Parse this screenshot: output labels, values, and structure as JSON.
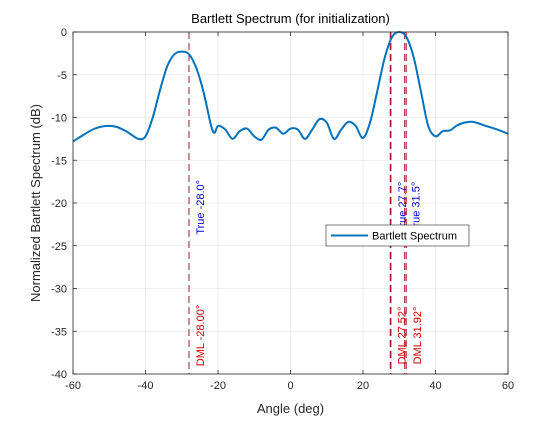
{
  "chart_data": {
    "type": "line",
    "title": "Bartlett Spectrum (for initialization)",
    "xlabel": "Angle (deg)",
    "ylabel": "Normalized Bartlett Spectrum (dB)",
    "xlim": [
      -60,
      60
    ],
    "ylim": [
      -40,
      0
    ],
    "xticks": [
      -60,
      -40,
      -20,
      0,
      20,
      40,
      60
    ],
    "yticks": [
      0,
      -5,
      -10,
      -15,
      -20,
      -25,
      -30,
      -35,
      -40
    ],
    "xtick_labels": [
      "-60",
      "-40",
      "-20",
      "0",
      "20",
      "40",
      "60"
    ],
    "ytick_labels": [
      "0",
      "-5",
      "-10",
      "-15",
      "-20",
      "-25",
      "-30",
      "-35",
      "-40"
    ],
    "grid": true,
    "legend": {
      "placement": "center-right",
      "entries": [
        "Bartlett Spectrum"
      ]
    },
    "series": [
      {
        "name": "Bartlett Spectrum",
        "color": "#0072BD",
        "x": [
          -60,
          -57,
          -54,
          -51,
          -48,
          -45,
          -42,
          -40,
          -38,
          -36,
          -34,
          -32,
          -30,
          -28,
          -26,
          -24,
          -22,
          -21,
          -20,
          -18,
          -16,
          -14,
          -12,
          -10,
          -8,
          -6,
          -4,
          -2,
          0,
          2,
          4,
          6,
          8,
          10,
          12,
          14,
          16,
          18,
          20,
          22,
          24,
          26,
          28,
          30,
          32,
          34,
          36,
          38,
          40,
          42,
          44,
          46,
          48,
          50,
          52,
          54,
          57,
          60
        ],
        "y": [
          -12.8,
          -12.0,
          -11.3,
          -11.0,
          -11.1,
          -11.7,
          -12.5,
          -12.2,
          -10.0,
          -6.8,
          -4.0,
          -2.6,
          -2.3,
          -2.6,
          -4.2,
          -7.0,
          -10.8,
          -11.8,
          -11.0,
          -11.4,
          -12.5,
          -11.6,
          -11.3,
          -12.2,
          -12.6,
          -11.4,
          -11.2,
          -11.9,
          -11.3,
          -11.4,
          -12.5,
          -11.4,
          -10.2,
          -10.6,
          -12.5,
          -11.4,
          -10.5,
          -11.0,
          -12.4,
          -10.5,
          -6.8,
          -3.0,
          -0.6,
          0.0,
          -0.6,
          -3.0,
          -7.0,
          -11.0,
          -12.2,
          -11.6,
          -11.5,
          -10.9,
          -10.6,
          -10.5,
          -10.7,
          -11.0,
          -11.4,
          -11.9
        ]
      }
    ],
    "markers": [
      {
        "x": -28.0,
        "label": "True -28.0°",
        "color": "#0000CC",
        "text_y": -20.5
      },
      {
        "x": 27.7,
        "label": "True 27.7°",
        "color": "#0000CC",
        "text_y": -20.5
      },
      {
        "x": 31.5,
        "label": "True 31.5°",
        "color": "#0000CC",
        "text_y": -20.5
      },
      {
        "x": -28.0,
        "label": "DML -28.00°",
        "color": "#CC0000",
        "text_y": -35.5
      },
      {
        "x": 27.52,
        "label": "DML 27.52°",
        "color": "#CC0000",
        "text_y": -35.5
      },
      {
        "x": 31.92,
        "label": "DML 31.92°",
        "color": "#CC0000",
        "text_y": -35.5
      }
    ],
    "vlines_color": "#A2142F"
  }
}
